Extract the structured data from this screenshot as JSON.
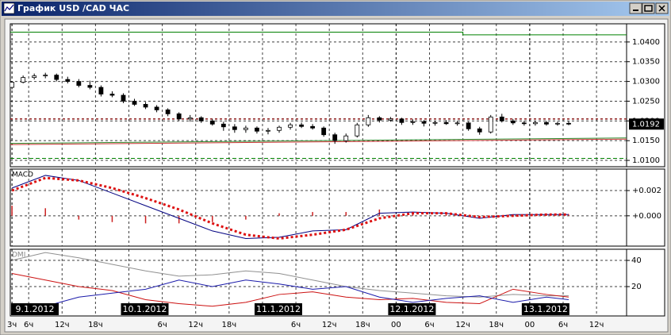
{
  "window_title": "График USD /CAD ЧАС",
  "chart_data": [
    {
      "type": "candlestick",
      "x": [
        3,
        5,
        7,
        9,
        11,
        13,
        15,
        17,
        19,
        21,
        23,
        25,
        27,
        29,
        31,
        33,
        35,
        37,
        39,
        41,
        43,
        45,
        47,
        49,
        51,
        53,
        55,
        57,
        59,
        61,
        63,
        65,
        67,
        69,
        71,
        73,
        75,
        77,
        79,
        81,
        83,
        85,
        87,
        89,
        91,
        93,
        95,
        97,
        99,
        101,
        103
      ],
      "open": [
        1.0285,
        1.0298,
        1.031,
        1.0314,
        1.0316,
        1.0305,
        1.03,
        1.029,
        1.0285,
        1.0268,
        1.0265,
        1.025,
        1.0242,
        1.0235,
        1.0228,
        1.0218,
        1.0205,
        1.0208,
        1.02,
        1.0192,
        1.0185,
        1.0178,
        1.0182,
        1.0174,
        1.0176,
        1.0184,
        1.019,
        1.0186,
        1.0182,
        1.0165,
        1.015,
        1.0162,
        1.019,
        1.0208,
        1.0202,
        1.0205,
        1.0196,
        1.0198,
        1.0194,
        1.0196,
        1.0193,
        1.0195,
        1.018,
        1.0172,
        1.021,
        1.02,
        1.0195,
        1.0193,
        1.0196,
        1.0192,
        1.0194
      ],
      "high": [
        1.03,
        1.0315,
        1.032,
        1.0322,
        1.032,
        1.0312,
        1.0306,
        1.0302,
        1.029,
        1.0275,
        1.027,
        1.0256,
        1.0248,
        1.024,
        1.0232,
        1.0222,
        1.0215,
        1.0212,
        1.0205,
        1.0198,
        1.0192,
        1.0188,
        1.0186,
        1.0182,
        1.0188,
        1.0195,
        1.0196,
        1.0192,
        1.0186,
        1.017,
        1.0168,
        1.0195,
        1.0215,
        1.0212,
        1.021,
        1.0208,
        1.0204,
        1.0202,
        1.02,
        1.0202,
        1.02,
        1.0198,
        1.0185,
        1.0215,
        1.0218,
        1.0205,
        1.02,
        1.02,
        1.02,
        1.0198,
        1.0199
      ],
      "low": [
        1.028,
        1.0295,
        1.0305,
        1.0308,
        1.03,
        1.0295,
        1.0285,
        1.028,
        1.0262,
        1.026,
        1.0245,
        1.0238,
        1.023,
        1.0222,
        1.0212,
        1.02,
        1.0198,
        1.0195,
        1.0188,
        1.0175,
        1.017,
        1.017,
        1.0168,
        1.0166,
        1.017,
        1.0178,
        1.0182,
        1.0178,
        1.016,
        1.0142,
        1.0145,
        1.0158,
        1.0185,
        1.0196,
        1.0198,
        1.019,
        1.019,
        1.0186,
        1.0188,
        1.019,
        1.0188,
        1.0175,
        1.0165,
        1.0168,
        1.0196,
        1.019,
        1.0188,
        1.0188,
        1.0188,
        1.0188,
        1.0189
      ],
      "close": [
        1.0298,
        1.031,
        1.0314,
        1.0316,
        1.0305,
        1.03,
        1.029,
        1.0285,
        1.0268,
        1.0265,
        1.025,
        1.0242,
        1.0235,
        1.0228,
        1.0218,
        1.0205,
        1.0208,
        1.02,
        1.0192,
        1.0185,
        1.0178,
        1.0182,
        1.0174,
        1.0176,
        1.0184,
        1.019,
        1.0186,
        1.0182,
        1.0165,
        1.015,
        1.0162,
        1.019,
        1.0208,
        1.0202,
        1.0205,
        1.0196,
        1.0198,
        1.0194,
        1.0196,
        1.0193,
        1.0195,
        1.018,
        1.0172,
        1.021,
        1.02,
        1.0195,
        1.0193,
        1.0196,
        1.0192,
        1.0194,
        1.0192
      ],
      "lines": [
        {
          "color": "#008000",
          "style": "solid",
          "x": [
            2.7,
            84,
            84,
            113.4
          ],
          "values": [
            1.0425,
            1.0425,
            1.0418,
            1.0418
          ]
        },
        {
          "color": "#8b1a1a",
          "style": "dotted",
          "x": [
            2.7,
            113.4
          ],
          "values": [
            1.0205,
            1.0205
          ]
        },
        {
          "color": "#008000",
          "style": "dashed",
          "x": [
            2.7,
            113.4
          ],
          "values": [
            1.0105,
            1.0105
          ]
        },
        {
          "color": "#2e8b2e",
          "style": "solid",
          "x": [
            2.7,
            113.4
          ],
          "values": [
            1.0143,
            1.0157
          ]
        },
        {
          "color": "#cc3333",
          "style": "solid",
          "x": [
            2.7,
            113.4
          ],
          "values": [
            1.014,
            1.0154
          ]
        }
      ],
      "last_price": 1.0192,
      "xlim": [
        2.7,
        113.4
      ],
      "ylim": [
        1.0084,
        1.0446
      ],
      "yticks": [
        {
          "value": 1.01,
          "label": "1.0100"
        },
        {
          "value": 1.015,
          "label": "1.0150"
        },
        {
          "value": 1.02,
          "label": "1.0200"
        },
        {
          "value": 1.025,
          "label": "1.0250"
        },
        {
          "value": 1.03,
          "label": "1.0300"
        },
        {
          "value": 1.035,
          "label": "1.0350"
        },
        {
          "value": 1.04,
          "label": "1.0400"
        }
      ],
      "grid": true
    },
    {
      "type": "line",
      "title": "MACD",
      "x": [
        3,
        9,
        15,
        21,
        27,
        33,
        39,
        45,
        51,
        57,
        63,
        69,
        75,
        81,
        87,
        93,
        99,
        103
      ],
      "series": [
        {
          "style": "bar",
          "color": "#cc2222",
          "values": [
            0.0008,
            0.0006,
            -0.0003,
            -0.0005,
            -0.0006,
            -0.0006,
            -0.0005,
            -0.0003,
            0.0002,
            0.0003,
            0.0003,
            0.0005,
            0.0002,
            0.0001,
            -0.0001,
            0.0001,
            0.0001,
            0.0001
          ]
        },
        {
          "style": "solid",
          "color": "#000080",
          "values": [
            0.0022,
            0.0032,
            0.0028,
            0.0018,
            0.0008,
            -0.0002,
            -0.0012,
            -0.0018,
            -0.0017,
            -0.0012,
            -0.0011,
            0.0002,
            0.0003,
            0.0002,
            -0.0002,
            0.0001,
            0.0001,
            0.0001
          ]
        },
        {
          "style": "dotted",
          "color": "#dd1111",
          "values": [
            0.002,
            0.003,
            0.0028,
            0.0022,
            0.0014,
            0.0005,
            -0.0006,
            -0.0015,
            -0.0018,
            -0.0015,
            -0.0011,
            -0.0002,
            0.0002,
            0.0002,
            -0.0001,
            0.0,
            0.0001,
            0.0001
          ]
        }
      ],
      "xlim": [
        2.7,
        113.4
      ],
      "ylim": [
        -0.0024,
        0.0037
      ],
      "yticks": [
        {
          "value": 0,
          "label": "+0.000"
        },
        {
          "value": 0.002,
          "label": "+0.002"
        }
      ],
      "grid": true
    },
    {
      "type": "line",
      "title": "DMI",
      "x": [
        3,
        9,
        15,
        21,
        27,
        33,
        39,
        45,
        51,
        57,
        63,
        69,
        75,
        81,
        87,
        93,
        99,
        103
      ],
      "series": [
        {
          "style": "solid",
          "color": "#909090",
          "values": [
            40,
            46,
            42,
            37,
            32,
            28,
            29,
            32,
            30,
            25,
            20,
            17,
            15,
            13,
            12,
            14,
            13,
            13
          ]
        },
        {
          "style": "solid",
          "color": "#cc1111",
          "values": [
            30,
            25,
            20,
            17,
            10,
            7,
            5,
            8,
            14,
            16,
            12,
            10,
            11,
            8,
            7,
            18,
            14,
            12
          ]
        },
        {
          "style": "solid",
          "color": "#1a1aaa",
          "values": [
            5,
            5,
            12,
            15,
            18,
            25,
            20,
            25,
            22,
            18,
            20,
            12,
            8,
            11,
            13,
            8,
            12,
            10
          ]
        }
      ],
      "xlim": [
        2.7,
        113.4
      ],
      "ylim": [
        -2.4,
        48.5
      ],
      "yticks": [
        20,
        40
      ],
      "xticks": [
        {
          "value": 3,
          "label": "3ч"
        },
        {
          "value": 6,
          "label": "6ч"
        },
        {
          "value": 12,
          "label": "12ч"
        },
        {
          "value": 18,
          "label": "18ч"
        },
        {
          "value": 30,
          "label": "6ч"
        },
        {
          "value": 36,
          "label": "12ч"
        },
        {
          "value": 42,
          "label": "18ч"
        },
        {
          "value": 54,
          "label": "6ч"
        },
        {
          "value": 60,
          "label": "12ч"
        },
        {
          "value": 66,
          "label": "18ч"
        },
        {
          "value": 72,
          "label": "00"
        },
        {
          "value": 78,
          "label": "6ч"
        },
        {
          "value": 84,
          "label": "12ч"
        },
        {
          "value": 90,
          "label": "18ч"
        },
        {
          "value": 96,
          "label": "00"
        },
        {
          "value": 102,
          "label": "6ч"
        },
        {
          "value": 108,
          "label": "12ч"
        }
      ],
      "date_ticks": [
        {
          "value": 3,
          "label": "9.1.2012"
        },
        {
          "value": 24,
          "label": "10.1.2012"
        },
        {
          "value": 48,
          "label": "11.1.2012"
        },
        {
          "value": 72,
          "label": "12.1.2012"
        },
        {
          "value": 96,
          "label": "13.1.2012"
        }
      ],
      "grid": true
    }
  ]
}
